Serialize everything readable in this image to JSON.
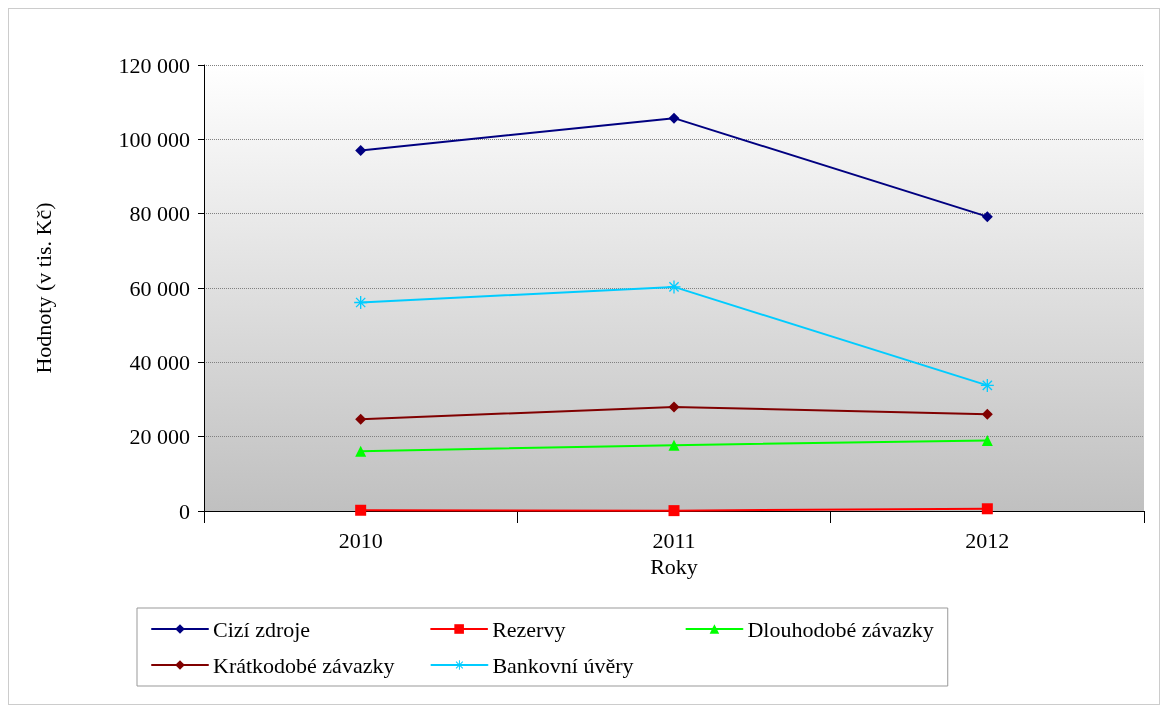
{
  "chart_data": {
    "type": "line",
    "xlabel": "Roky",
    "ylabel": "Hodnoty (v tis. Kč)",
    "categories": [
      "2010",
      "2011",
      "2012"
    ],
    "series": [
      {
        "name": "Cizí zdroje",
        "color": "#000080",
        "marker": "diamond",
        "values": [
          97000,
          105700,
          79200
        ]
      },
      {
        "name": "Rezervy",
        "color": "#ff0000",
        "marker": "square",
        "values": [
          200,
          100,
          600
        ]
      },
      {
        "name": "Dlouhodobé závazky",
        "color": "#00ff00",
        "marker": "triangle",
        "values": [
          16100,
          17700,
          19000
        ]
      },
      {
        "name": "Krátkodobé závazky",
        "color": "#800000",
        "marker": "diamond",
        "values": [
          24700,
          28000,
          26000
        ]
      },
      {
        "name": "Bankovní úvěry",
        "color": "#00ccff",
        "marker": "star",
        "values": [
          56100,
          60300,
          33800
        ]
      }
    ],
    "ylim": [
      0,
      120000
    ],
    "yticks": [
      {
        "value": 0,
        "label": "0"
      },
      {
        "value": 20000,
        "label": "20 000"
      },
      {
        "value": 40000,
        "label": "40 000"
      },
      {
        "value": 60000,
        "label": "60 000"
      },
      {
        "value": 80000,
        "label": "80 000"
      },
      {
        "value": 100000,
        "label": "100 000"
      },
      {
        "value": 120000,
        "label": "120 000"
      }
    ],
    "grid": "y",
    "legend": "bottom",
    "line_style": "solid"
  }
}
